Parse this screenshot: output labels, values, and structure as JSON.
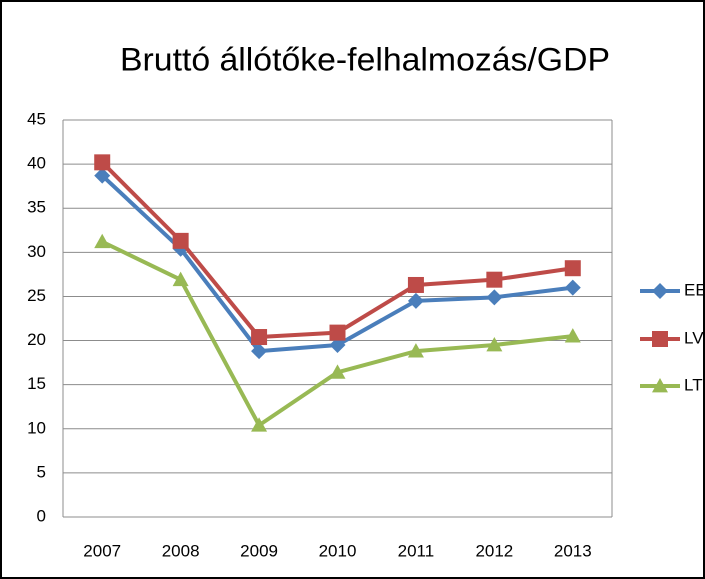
{
  "chart_data": {
    "type": "line",
    "title": "Bruttó állótőke-felhalmozás/GDP",
    "categories": [
      "2007",
      "2008",
      "2009",
      "2010",
      "2011",
      "2012",
      "2013"
    ],
    "series": [
      {
        "name": "EE",
        "color": "#4a7ebb",
        "marker": "diamond",
        "values": [
          38.7,
          30.4,
          18.8,
          19.5,
          24.5,
          24.9,
          26.0
        ]
      },
      {
        "name": "LV",
        "color": "#be4b48",
        "marker": "square",
        "values": [
          40.2,
          31.3,
          20.4,
          20.9,
          26.3,
          26.9,
          28.2
        ]
      },
      {
        "name": "LT",
        "color": "#98b954",
        "marker": "triangle",
        "values": [
          31.2,
          26.9,
          10.4,
          16.4,
          18.8,
          19.5,
          20.5
        ]
      }
    ],
    "ylim": [
      0,
      45
    ],
    "yticks": [
      0,
      5,
      10,
      15,
      20,
      25,
      30,
      35,
      40,
      45
    ],
    "grid": true,
    "legend": "right"
  }
}
